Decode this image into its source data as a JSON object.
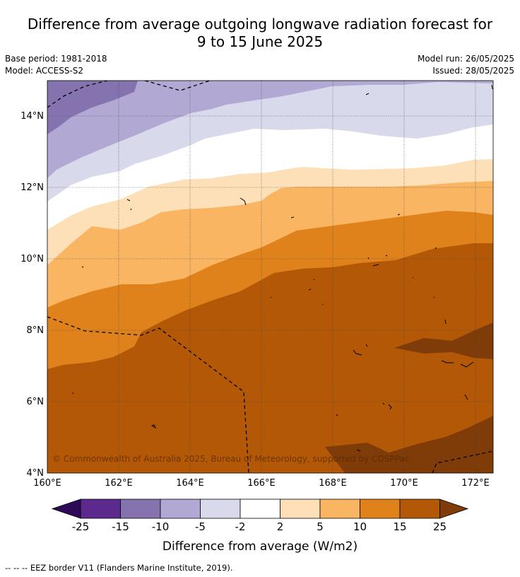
{
  "header": {
    "title_line1": "Difference from average outgoing longwave radiation forecast for",
    "title_line2": "9 to 15 June 2025",
    "base_period": "Base period: 1981-2018",
    "model": "Model: ACCESS-S2",
    "model_run": "Model run: 26/05/2025",
    "issued": "Issued: 28/05/2025"
  },
  "map": {
    "copyright": "© Commonwealth of Australia 2025, Bureau of Meteorology, supported by COSPPac",
    "lon_labels": [
      "160°E",
      "162°E",
      "164°E",
      "166°E",
      "168°E",
      "170°E",
      "172°E"
    ],
    "lat_labels": [
      "4°N",
      "6°N",
      "8°N",
      "10°N",
      "12°N",
      "14°N"
    ]
  },
  "legend": {
    "ticks": [
      "-25",
      "-15",
      "-10",
      "-5",
      "-2",
      "2",
      "5",
      "10",
      "15",
      "25"
    ],
    "label": "Difference from average (W/m2)",
    "colors": {
      "lt_-25": "#2c0a58",
      "-25_-15": "#5b2a8c",
      "-15_-10": "#8573b0",
      "-10_-5": "#b1a9d3",
      "-5_-2": "#d9d9ec",
      "-2_2": "#ffffff",
      "2_5": "#fde0b7",
      "5_10": "#f9b562",
      "10_15": "#e0821c",
      "15_25": "#b25807",
      "gt_25": "#7f3b08"
    }
  },
  "footer": {
    "eez_note": "--  --  -- EEZ border V11 (Flanders Marine Institute, 2019)."
  }
}
